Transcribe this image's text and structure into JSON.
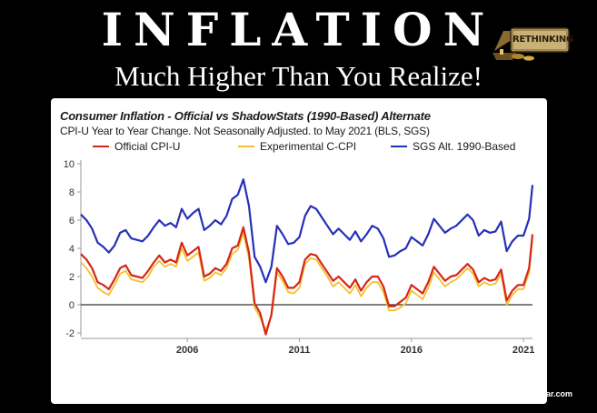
{
  "header": {
    "headline": "INFLATION",
    "subheadline": "Much Higher Than You Realize!",
    "logo_text": "RETHINKING"
  },
  "footer": {
    "credit": "Rethinkingthedollar.com"
  },
  "colors": {
    "background": "#000000",
    "panel": "#ffffff",
    "official": "#d62618",
    "experimental": "#f2c12e",
    "sgs": "#2630b8"
  },
  "chart_data": {
    "type": "line",
    "title": "Consumer Inflation - Official vs ShadowStats (1990-Based) Alternate",
    "subtitle": "CPI-U Year to Year Change. Not Seasonally Adjusted. to May 2021  (BLS, SGS)",
    "xlabel": "",
    "ylabel": "",
    "xlim": [
      2001.25,
      2021.4
    ],
    "ylim": [
      -2,
      10
    ],
    "x_ticks": [
      "2006",
      "2011",
      "2016",
      "2021"
    ],
    "y_ticks": [
      "10",
      "8",
      "6",
      "4",
      "2",
      "0",
      "-2"
    ],
    "grid": false,
    "legend_position": "top",
    "x": [
      2001.25,
      2001.5,
      2001.75,
      2002,
      2002.25,
      2002.5,
      2002.75,
      2003,
      2003.25,
      2003.5,
      2003.75,
      2004,
      2004.25,
      2004.5,
      2004.75,
      2005,
      2005.25,
      2005.5,
      2005.75,
      2006,
      2006.25,
      2006.5,
      2006.75,
      2007,
      2007.25,
      2007.5,
      2007.75,
      2008,
      2008.25,
      2008.5,
      2008.75,
      2009,
      2009.25,
      2009.5,
      2009.75,
      2010,
      2010.25,
      2010.5,
      2010.75,
      2011,
      2011.25,
      2011.5,
      2011.75,
      2012,
      2012.25,
      2012.5,
      2012.75,
      2013,
      2013.25,
      2013.5,
      2013.75,
      2014,
      2014.25,
      2014.5,
      2014.75,
      2015,
      2015.25,
      2015.5,
      2015.75,
      2016,
      2016.25,
      2016.5,
      2016.75,
      2017,
      2017.25,
      2017.5,
      2017.75,
      2018,
      2018.25,
      2018.5,
      2018.75,
      2019,
      2019.25,
      2019.5,
      2019.75,
      2020,
      2020.25,
      2020.5,
      2020.75,
      2021,
      2021.25,
      2021.4
    ],
    "series": [
      {
        "name": "Official CPI-U",
        "values": [
          3.6,
          3.2,
          2.6,
          1.6,
          1.4,
          1.1,
          1.8,
          2.6,
          2.8,
          2.1,
          2.0,
          1.9,
          2.4,
          3.0,
          3.5,
          3.0,
          3.2,
          3.0,
          4.4,
          3.5,
          3.8,
          4.1,
          2.0,
          2.2,
          2.6,
          2.4,
          2.9,
          4.0,
          4.2,
          5.5,
          3.7,
          0.1,
          -0.6,
          -2.1,
          -0.7,
          2.6,
          2.0,
          1.2,
          1.2,
          1.6,
          3.2,
          3.6,
          3.5,
          2.9,
          2.3,
          1.7,
          2.0,
          1.6,
          1.2,
          1.8,
          1.0,
          1.6,
          2.0,
          2.0,
          1.3,
          -0.1,
          -0.1,
          0.2,
          0.5,
          1.4,
          1.1,
          0.8,
          1.6,
          2.7,
          2.2,
          1.7,
          2.0,
          2.1,
          2.5,
          2.9,
          2.5,
          1.6,
          1.9,
          1.7,
          1.8,
          2.5,
          0.3,
          1.0,
          1.4,
          1.4,
          2.6,
          5.0
        ]
      },
      {
        "name": "Experimental C-CPI",
        "values": [
          3.0,
          2.6,
          2.0,
          1.2,
          0.9,
          0.7,
          1.4,
          2.2,
          2.4,
          1.8,
          1.7,
          1.6,
          2.0,
          2.7,
          3.1,
          2.7,
          2.9,
          2.7,
          4.0,
          3.1,
          3.4,
          3.7,
          1.7,
          1.9,
          2.3,
          2.1,
          2.6,
          3.6,
          3.9,
          5.1,
          3.3,
          -0.2,
          -0.9,
          -1.8,
          -0.8,
          2.3,
          1.7,
          0.9,
          0.8,
          1.2,
          2.9,
          3.3,
          3.2,
          2.6,
          2.0,
          1.3,
          1.6,
          1.2,
          0.8,
          1.4,
          0.6,
          1.2,
          1.6,
          1.6,
          0.9,
          -0.4,
          -0.4,
          -0.2,
          0.1,
          1.0,
          0.7,
          0.4,
          1.2,
          2.3,
          1.8,
          1.3,
          1.6,
          1.8,
          2.2,
          2.6,
          2.2,
          1.3,
          1.6,
          1.4,
          1.5,
          2.2,
          0.0,
          0.7,
          1.1,
          1.1,
          2.3,
          4.7
        ]
      },
      {
        "name": "SGS  Alt. 1990-Based",
        "values": [
          6.4,
          6.0,
          5.4,
          4.4,
          4.1,
          3.7,
          4.2,
          5.1,
          5.3,
          4.7,
          4.6,
          4.5,
          4.9,
          5.5,
          6.0,
          5.6,
          5.8,
          5.5,
          6.8,
          6.1,
          6.5,
          6.8,
          5.3,
          5.6,
          6.0,
          5.7,
          6.3,
          7.5,
          7.8,
          8.9,
          7.0,
          3.4,
          2.7,
          1.6,
          2.7,
          5.6,
          5.0,
          4.3,
          4.4,
          4.8,
          6.3,
          7.0,
          6.8,
          6.2,
          5.6,
          5.0,
          5.4,
          5.0,
          4.6,
          5.2,
          4.5,
          5.0,
          5.6,
          5.4,
          4.7,
          3.4,
          3.5,
          3.8,
          4.0,
          4.8,
          4.5,
          4.2,
          5.0,
          6.1,
          5.6,
          5.1,
          5.4,
          5.6,
          6.0,
          6.4,
          6.0,
          4.9,
          5.3,
          5.1,
          5.2,
          5.9,
          3.8,
          4.5,
          4.9,
          4.9,
          6.1,
          8.5
        ]
      }
    ]
  }
}
